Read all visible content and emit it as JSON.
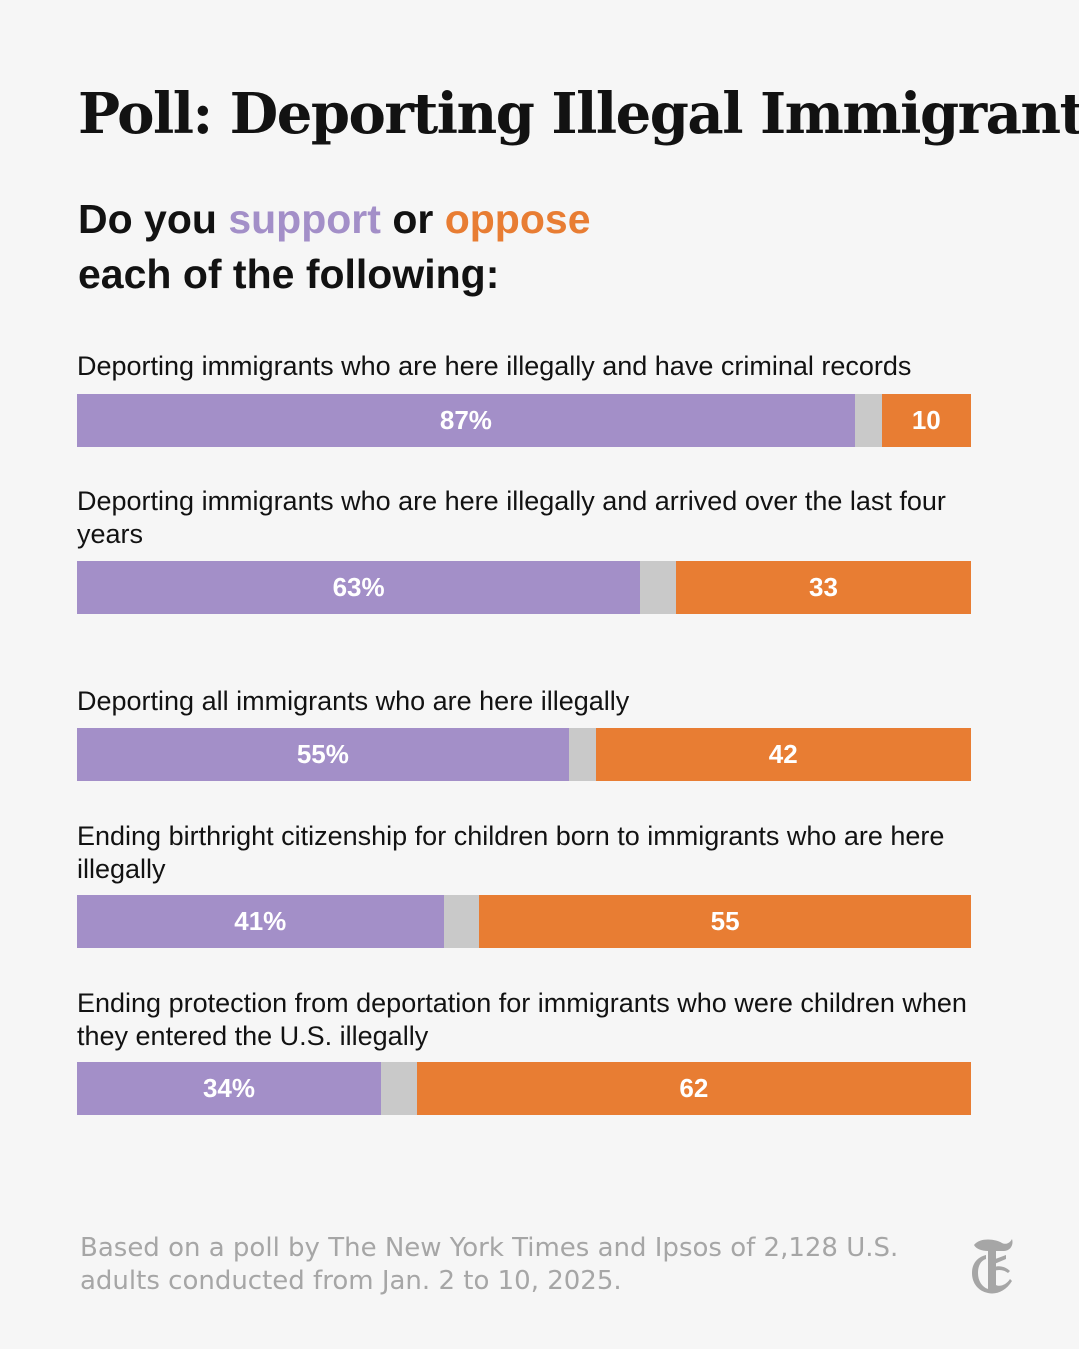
{
  "title": "Poll: Deporting Illegal Immigrants",
  "subtitle": {
    "part1": "Do you ",
    "support": "support",
    "part2": " or ",
    "oppose": "oppose",
    "line2": "each of the following:"
  },
  "colors": {
    "support": "#a38fc8",
    "oppose": "#e87d33",
    "neutral": "#c9c9c9"
  },
  "chart_data": {
    "type": "bar",
    "orientation": "horizontal-stacked",
    "categories": [
      "Deporting immigrants who are here illegally and have criminal records",
      "Deporting immigrants who are here illegally and arrived over the last four years",
      "Deporting all immigrants who are here illegally",
      "Ending birthright citizenship for children born to immigrants who are here illegally",
      "Ending protection from deportation for immigrants who were children when they entered the U.S. illegally"
    ],
    "series": [
      {
        "name": "support",
        "values": [
          87,
          63,
          55,
          41,
          34
        ],
        "labels": [
          "87%",
          "63%",
          "55%",
          "41%",
          "34%"
        ]
      },
      {
        "values": [
          3,
          4,
          3,
          4,
          4
        ]
      },
      {
        "name": "oppose",
        "values": [
          10,
          33,
          42,
          55,
          62
        ],
        "labels": [
          "10",
          "33",
          "42",
          "55",
          "62"
        ]
      }
    ],
    "xlim": [
      0,
      100
    ]
  },
  "footnote": "Based on a poll by The New York Times and Ipsos of 2,128 U.S. adults conducted from Jan. 2 to 10, 2025.",
  "logo_icon": "nyt-t-logo-icon"
}
